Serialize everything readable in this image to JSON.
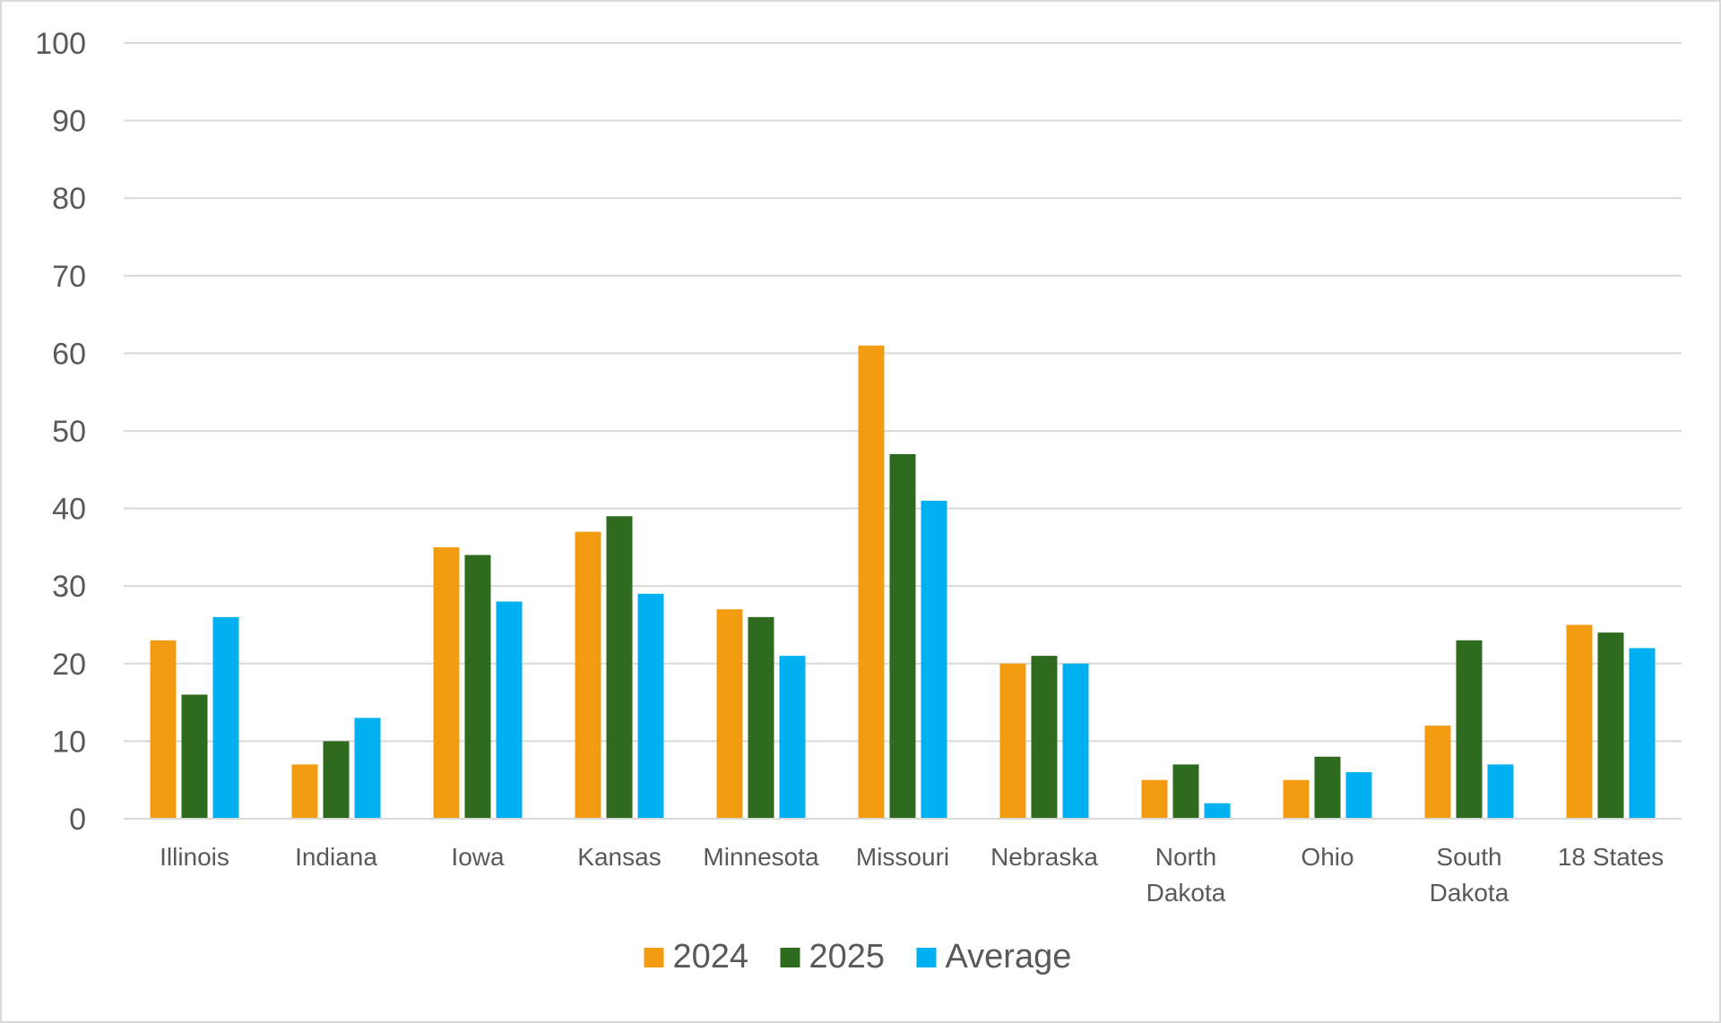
{
  "chart_data": {
    "type": "bar",
    "categories": [
      [
        "Illinois"
      ],
      [
        "Indiana"
      ],
      [
        "Iowa"
      ],
      [
        "Kansas"
      ],
      [
        "Minnesota"
      ],
      [
        "Missouri"
      ],
      [
        "Nebraska"
      ],
      [
        "North",
        "Dakota"
      ],
      [
        "Ohio"
      ],
      [
        "South",
        "Dakota"
      ],
      [
        "18 States"
      ]
    ],
    "series": [
      {
        "name": "2024",
        "color": "#f39c12",
        "values": [
          23,
          7,
          35,
          37,
          27,
          61,
          20,
          5,
          5,
          12,
          25
        ]
      },
      {
        "name": "2025",
        "color": "#2e6b1f",
        "values": [
          16,
          10,
          34,
          39,
          26,
          47,
          21,
          7,
          8,
          23,
          24
        ]
      },
      {
        "name": "Average",
        "color": "#00b0f0",
        "values": [
          26,
          13,
          28,
          29,
          21,
          41,
          20,
          2,
          6,
          7,
          22
        ]
      }
    ],
    "ylim": [
      0,
      100
    ],
    "yticks": [
      0,
      10,
      20,
      30,
      40,
      50,
      60,
      70,
      80,
      90,
      100
    ],
    "grid": true,
    "legend": "bottom-center",
    "title": "",
    "xlabel": "",
    "ylabel": ""
  }
}
